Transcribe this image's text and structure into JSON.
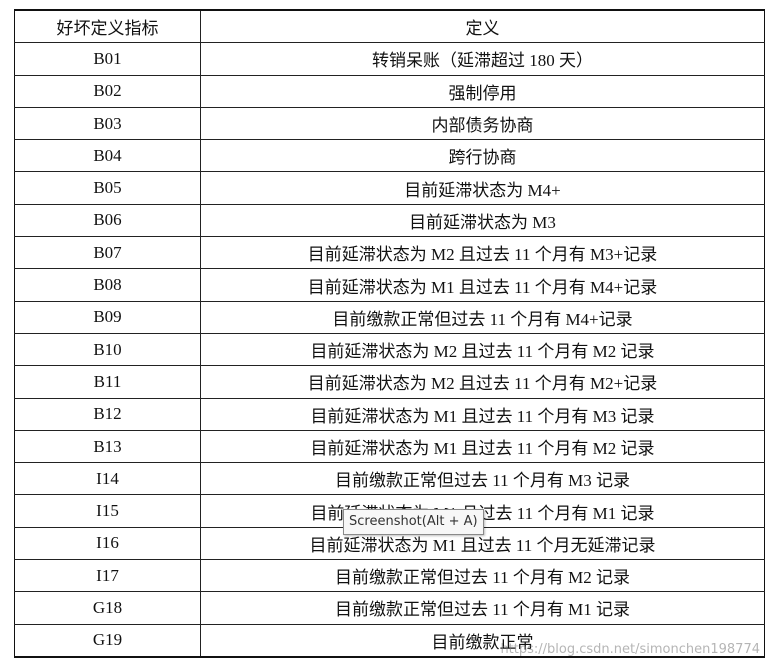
{
  "table": {
    "headers": [
      "好坏定义指标",
      "定义"
    ],
    "rows": [
      {
        "code": "B01",
        "definition": "转销呆账（延滞超过 180 天）"
      },
      {
        "code": "B02",
        "definition": "强制停用"
      },
      {
        "code": "B03",
        "definition": "内部债务协商"
      },
      {
        "code": "B04",
        "definition": "跨行协商"
      },
      {
        "code": "B05",
        "definition": "目前延滞状态为 M4+"
      },
      {
        "code": "B06",
        "definition": "目前延滞状态为 M3"
      },
      {
        "code": "B07",
        "definition": "目前延滞状态为 M2 且过去 11 个月有 M3+记录"
      },
      {
        "code": "B08",
        "definition": "目前延滞状态为 M1 且过去 11 个月有 M4+记录"
      },
      {
        "code": "B09",
        "definition": "目前缴款正常但过去 11 个月有 M4+记录"
      },
      {
        "code": "B10",
        "definition": "目前延滞状态为 M2 且过去 11 个月有 M2 记录"
      },
      {
        "code": "B11",
        "definition": "目前延滞状态为 M2 且过去 11 个月有 M2+记录"
      },
      {
        "code": "B12",
        "definition": "目前延滞状态为 M1 且过去 11 个月有 M3 记录"
      },
      {
        "code": "B13",
        "definition": "目前延滞状态为 M1 且过去 11 个月有 M2 记录"
      },
      {
        "code": "I14",
        "definition": "目前缴款正常但过去 11 个月有 M3 记录"
      },
      {
        "code": "I15",
        "definition": "目前延滞状态为 M1 且过去 11 个月有 M1 记录"
      },
      {
        "code": "I16",
        "definition": "目前延滞状态为 M1 且过去 11 个月无延滞记录"
      },
      {
        "code": "I17",
        "definition": "目前缴款正常但过去 11 个月有 M2 记录"
      },
      {
        "code": "G18",
        "definition": "目前缴款正常但过去 11 个月有 M1 记录"
      },
      {
        "code": "G19",
        "definition": "目前缴款正常"
      }
    ]
  },
  "tooltip": {
    "text": "Screenshot(Alt + A)"
  },
  "watermark": {
    "text": "https://blog.csdn.net/simonchen198774"
  }
}
